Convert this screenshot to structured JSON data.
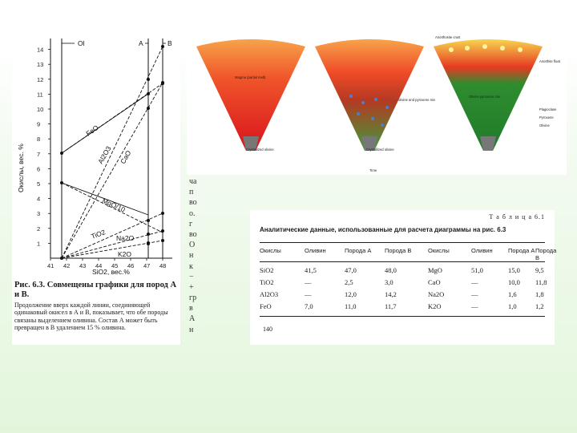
{
  "diagram": {
    "y_axis_label": "Окислы, вес. %",
    "y_ticks": [
      "1",
      "2",
      "3",
      "4",
      "5",
      "6",
      "7",
      "8",
      "9",
      "10",
      "11",
      "12",
      "13",
      "14"
    ],
    "x_ticks": [
      "41",
      "42",
      "43",
      "44",
      "45",
      "46",
      "47",
      "48"
    ],
    "x_axis_label": "SiO2, вес.%",
    "marker_ol": "Ol",
    "marker_a": "A",
    "marker_b": "B",
    "oxide_labels": {
      "feo": "FeO",
      "al2o3": "Al2O3",
      "cao": "CaO",
      "mgo": "MgO/10",
      "tio2": "TiO2",
      "na2o": "Na2O",
      "k2o": "K2O"
    }
  },
  "caption": {
    "title": "Рис. 6.3. Совмещены графики для пород А и В.",
    "body": "Продолжение вверх каждой линии, соединяющей одинаковый окисел в А и В, показывает, что обе породы связаны выделением оливина. Состав А может быть превращен в В удалением 15 % оливина."
  },
  "strip_chars": [
    "ча",
    "п",
    "во",
    "о.",
    "г",
    "во",
    "О",
    "н",
    "к",
    "−",
    "+",
    "гр",
    "в",
    "А",
    "н"
  ],
  "cones": {
    "labels": {
      "c1_melt": "Magma (partial melt)",
      "c1_base": "Crystallized olivine",
      "c2_olivine_pyroxene": "olivine and pyroxene mix",
      "c2_base": "Crystallized olivine",
      "c3_top": "Anorthosite crust",
      "c3_anorthosite": "Anorthite float",
      "c3_olivine": "Olivine pyroxene mix",
      "legend_plag": "Plagioclase",
      "legend_pyrox": "Pyroxene",
      "legend_oliv": "Olivine",
      "time": "Time"
    }
  },
  "table": {
    "number": "Т а б л и ц а 6.1",
    "title": "Аналитические данные, использованные для расчета диаграммы на рис. 6.3",
    "headers": [
      "Окислы",
      "Оливин",
      "Порода А",
      "Порода В",
      "Окислы",
      "Оливин",
      "Порода А",
      "Порода В"
    ],
    "rows": [
      [
        "SiO2",
        "41,5",
        "47,0",
        "48,0",
        "MgO",
        "51,0",
        "15,0",
        "9,5"
      ],
      [
        "TiO2",
        "—",
        "2,5",
        "3,0",
        "CaO",
        "—",
        "10,0",
        "11,8"
      ],
      [
        "Al2O3",
        "—",
        "12,0",
        "14,2",
        "Na2O",
        "—",
        "1,6",
        "1,8"
      ],
      [
        "FeO",
        "7,0",
        "11,0",
        "11,7",
        "K2O",
        "—",
        "1,0",
        "1,2"
      ]
    ],
    "page_number": "140"
  }
}
